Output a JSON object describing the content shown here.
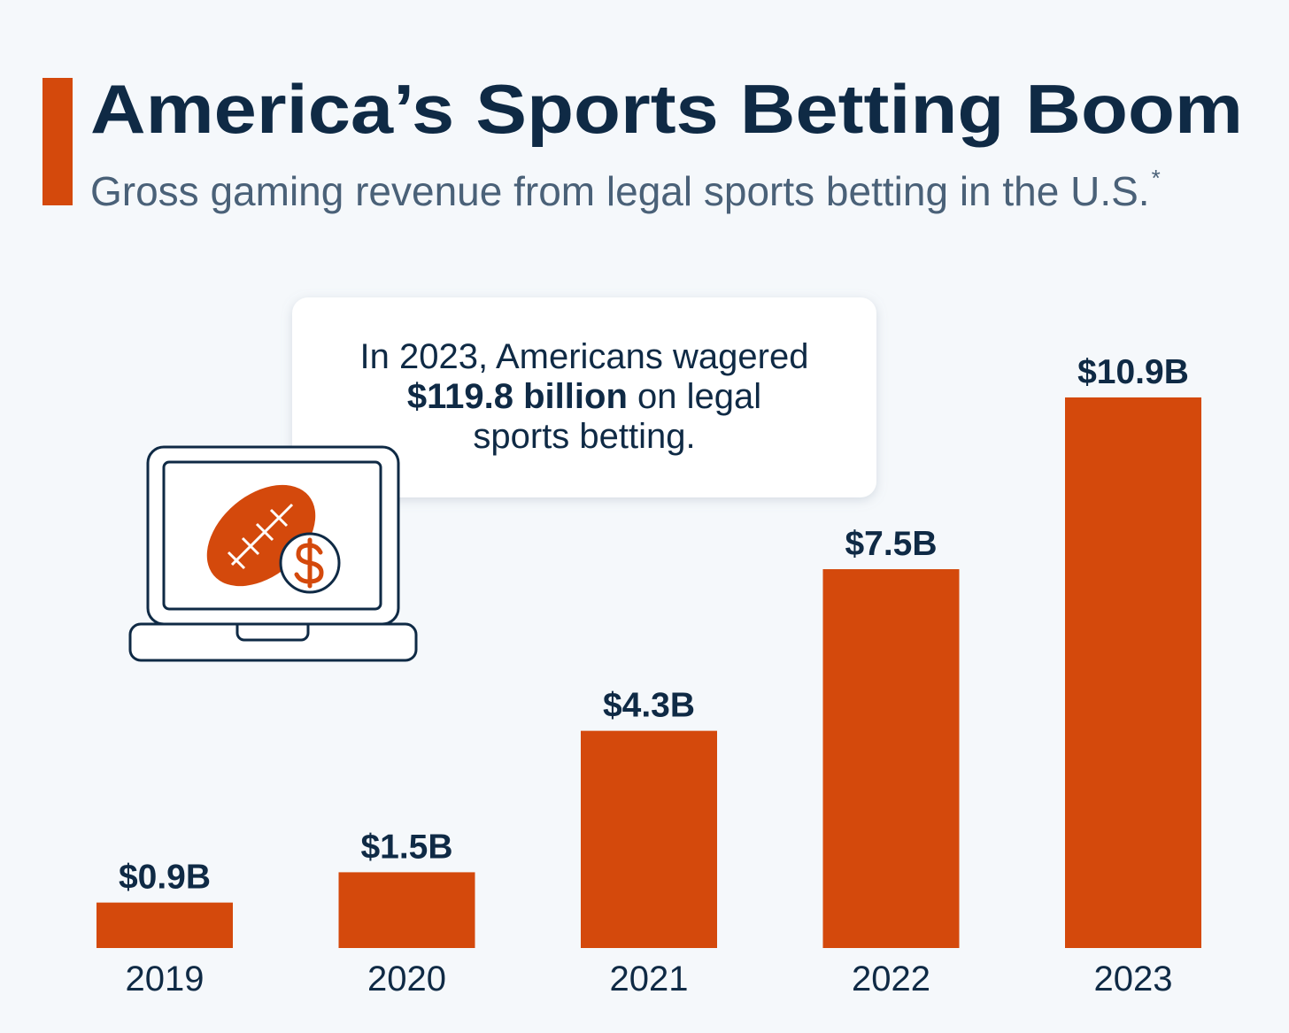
{
  "chart_data": {
    "type": "bar",
    "title": "America’s Sports Betting Boom",
    "subtitle": "Gross gaming revenue from legal sports betting in the U.S.",
    "subtitle_note": "*",
    "annotation": [
      [
        "In 2023, Americans wagered"
      ],
      [
        "$119.8 billion",
        " on legal"
      ],
      [
        "sports betting."
      ]
    ],
    "categories": [
      "2019",
      "2020",
      "2021",
      "2022",
      "2023"
    ],
    "values": [
      0.9,
      1.5,
      4.3,
      7.5,
      10.9
    ],
    "value_labels": [
      "$0.9B",
      "$1.5B",
      "$4.3B",
      "$7.5B",
      "$10.9B"
    ],
    "color": "#d4490c"
  }
}
